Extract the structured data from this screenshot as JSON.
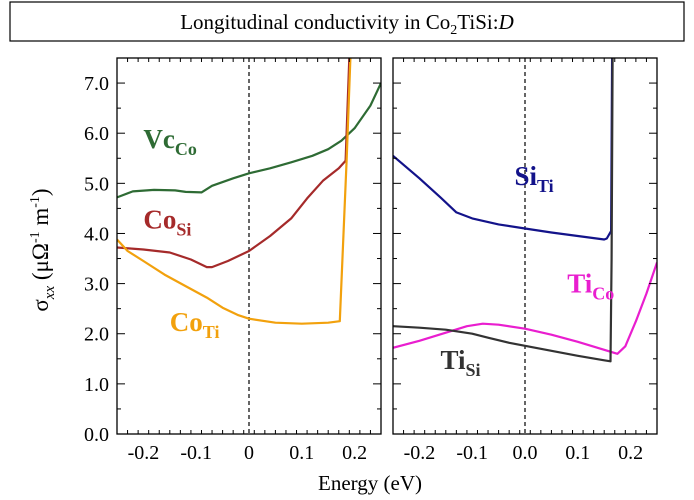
{
  "title_parts": {
    "prefix": "Longitudinal conductivity in Co",
    "sub": "2",
    "middle": "TiSi:",
    "italic": "D"
  },
  "axes": {
    "xlabel": "Energy (eV)",
    "ylabel_parts": {
      "sigma": "σ",
      "sigma_sub": "xx",
      "open": " (μΩ",
      "exp1": "-1",
      "mid": " m",
      "exp2": "-1",
      "close": ")"
    }
  },
  "chart_data": [
    {
      "type": "line",
      "panel": "left",
      "xlim": [
        -0.25,
        0.25
      ],
      "ylim": [
        0.0,
        7.5
      ],
      "x_ticks": [
        -0.2,
        -0.1,
        0.0,
        0.1,
        0.2
      ],
      "x_tick_labels": [
        "-0.2",
        "-0.1",
        "0",
        "0.1",
        "0.2"
      ],
      "y_ticks": [
        0.0,
        1.0,
        2.0,
        3.0,
        4.0,
        5.0,
        6.0,
        7.0
      ],
      "y_tick_labels": [
        "0.0",
        "1.0",
        "2.0",
        "3.0",
        "4.0",
        "5.0",
        "6.0",
        "7.0"
      ],
      "vline_x": 0.0,
      "series": [
        {
          "name": "Vc",
          "sub": "Co",
          "color": "#2e6b34",
          "points": [
            [
              -0.25,
              4.72
            ],
            [
              -0.22,
              4.84
            ],
            [
              -0.18,
              4.87
            ],
            [
              -0.14,
              4.86
            ],
            [
              -0.12,
              4.83
            ],
            [
              -0.09,
              4.82
            ],
            [
              -0.07,
              4.95
            ],
            [
              -0.03,
              5.1
            ],
            [
              0.0,
              5.2
            ],
            [
              0.04,
              5.3
            ],
            [
              0.08,
              5.42
            ],
            [
              0.12,
              5.55
            ],
            [
              0.15,
              5.68
            ],
            [
              0.175,
              5.85
            ],
            [
              0.2,
              6.1
            ],
            [
              0.23,
              6.55
            ],
            [
              0.25,
              7.0
            ]
          ]
        },
        {
          "name": "Co",
          "sub": "Si",
          "color": "#a52a2a",
          "points": [
            [
              -0.25,
              3.72
            ],
            [
              -0.2,
              3.68
            ],
            [
              -0.15,
              3.62
            ],
            [
              -0.11,
              3.48
            ],
            [
              -0.08,
              3.33
            ],
            [
              -0.07,
              3.33
            ],
            [
              -0.04,
              3.45
            ],
            [
              0.0,
              3.65
            ],
            [
              0.04,
              3.95
            ],
            [
              0.08,
              4.3
            ],
            [
              0.11,
              4.7
            ],
            [
              0.14,
              5.05
            ],
            [
              0.17,
              5.3
            ],
            [
              0.183,
              5.45
            ],
            [
              0.19,
              7.5
            ]
          ]
        },
        {
          "name": "Co",
          "sub": "Ti",
          "color": "#f2a10d",
          "points": [
            [
              -0.25,
              3.88
            ],
            [
              -0.23,
              3.65
            ],
            [
              -0.2,
              3.45
            ],
            [
              -0.16,
              3.18
            ],
            [
              -0.12,
              2.95
            ],
            [
              -0.08,
              2.72
            ],
            [
              -0.05,
              2.52
            ],
            [
              -0.02,
              2.37
            ],
            [
              0.0,
              2.3
            ],
            [
              0.05,
              2.22
            ],
            [
              0.1,
              2.2
            ],
            [
              0.15,
              2.22
            ],
            [
              0.172,
              2.25
            ],
            [
              0.185,
              5.5
            ],
            [
              0.192,
              7.5
            ]
          ]
        }
      ],
      "annotations": [
        {
          "name": "Vc",
          "sub": "Co",
          "color": "#2e6b34",
          "x": -0.2,
          "y": 5.7
        },
        {
          "name": "Co",
          "sub": "Si",
          "color": "#a52a2a",
          "x": -0.2,
          "y": 4.1
        },
        {
          "name": "Co",
          "sub": "Ti",
          "color": "#f2a10d",
          "x": -0.15,
          "y": 2.05
        }
      ]
    },
    {
      "type": "line",
      "panel": "right",
      "xlim": [
        -0.25,
        0.25
      ],
      "ylim": [
        0.0,
        7.5
      ],
      "x_ticks": [
        -0.2,
        -0.1,
        0.0,
        0.1,
        0.2
      ],
      "x_tick_labels": [
        "-0.2",
        "-0.1",
        "0.0",
        "0.1",
        "0.2"
      ],
      "y_ticks": [
        0.0,
        1.0,
        2.0,
        3.0,
        4.0,
        5.0,
        6.0,
        7.0
      ],
      "vline_x": 0.0,
      "series": [
        {
          "name": "Si",
          "sub": "Ti",
          "color": "#13138a",
          "points": [
            [
              -0.25,
              5.55
            ],
            [
              -0.2,
              5.1
            ],
            [
              -0.16,
              4.72
            ],
            [
              -0.13,
              4.42
            ],
            [
              -0.1,
              4.3
            ],
            [
              -0.05,
              4.18
            ],
            [
              0.0,
              4.1
            ],
            [
              0.05,
              4.02
            ],
            [
              0.1,
              3.95
            ],
            [
              0.15,
              3.88
            ],
            [
              0.155,
              3.9
            ],
            [
              0.163,
              4.05
            ],
            [
              0.165,
              7.5
            ]
          ]
        },
        {
          "name": "Ti",
          "sub": "Co",
          "color": "#e91ecf",
          "points": [
            [
              -0.25,
              1.72
            ],
            [
              -0.2,
              1.86
            ],
            [
              -0.15,
              2.02
            ],
            [
              -0.11,
              2.15
            ],
            [
              -0.08,
              2.2
            ],
            [
              -0.05,
              2.18
            ],
            [
              0.0,
              2.1
            ],
            [
              0.05,
              1.98
            ],
            [
              0.1,
              1.84
            ],
            [
              0.15,
              1.68
            ],
            [
              0.175,
              1.6
            ],
            [
              0.19,
              1.75
            ],
            [
              0.21,
              2.25
            ],
            [
              0.23,
              2.8
            ],
            [
              0.25,
              3.42
            ]
          ]
        },
        {
          "name": "Ti",
          "sub": "Si",
          "color": "#333333",
          "points": [
            [
              -0.25,
              2.15
            ],
            [
              -0.2,
              2.12
            ],
            [
              -0.15,
              2.08
            ],
            [
              -0.1,
              2.0
            ],
            [
              -0.07,
              1.92
            ],
            [
              -0.03,
              1.82
            ],
            [
              0.0,
              1.76
            ],
            [
              0.05,
              1.66
            ],
            [
              0.1,
              1.56
            ],
            [
              0.15,
              1.47
            ],
            [
              0.162,
              1.45
            ],
            [
              0.164,
              3.5
            ],
            [
              0.166,
              7.5
            ]
          ]
        }
      ],
      "annotations": [
        {
          "name": "Si",
          "sub": "Ti",
          "color": "#13138a",
          "x": -0.02,
          "y": 4.97
        },
        {
          "name": "Ti",
          "sub": "Co",
          "color": "#e91ecf",
          "x": 0.08,
          "y": 2.82
        },
        {
          "name": "Ti",
          "sub": "Si",
          "color": "#333333",
          "x": -0.16,
          "y": 1.3
        }
      ]
    }
  ]
}
